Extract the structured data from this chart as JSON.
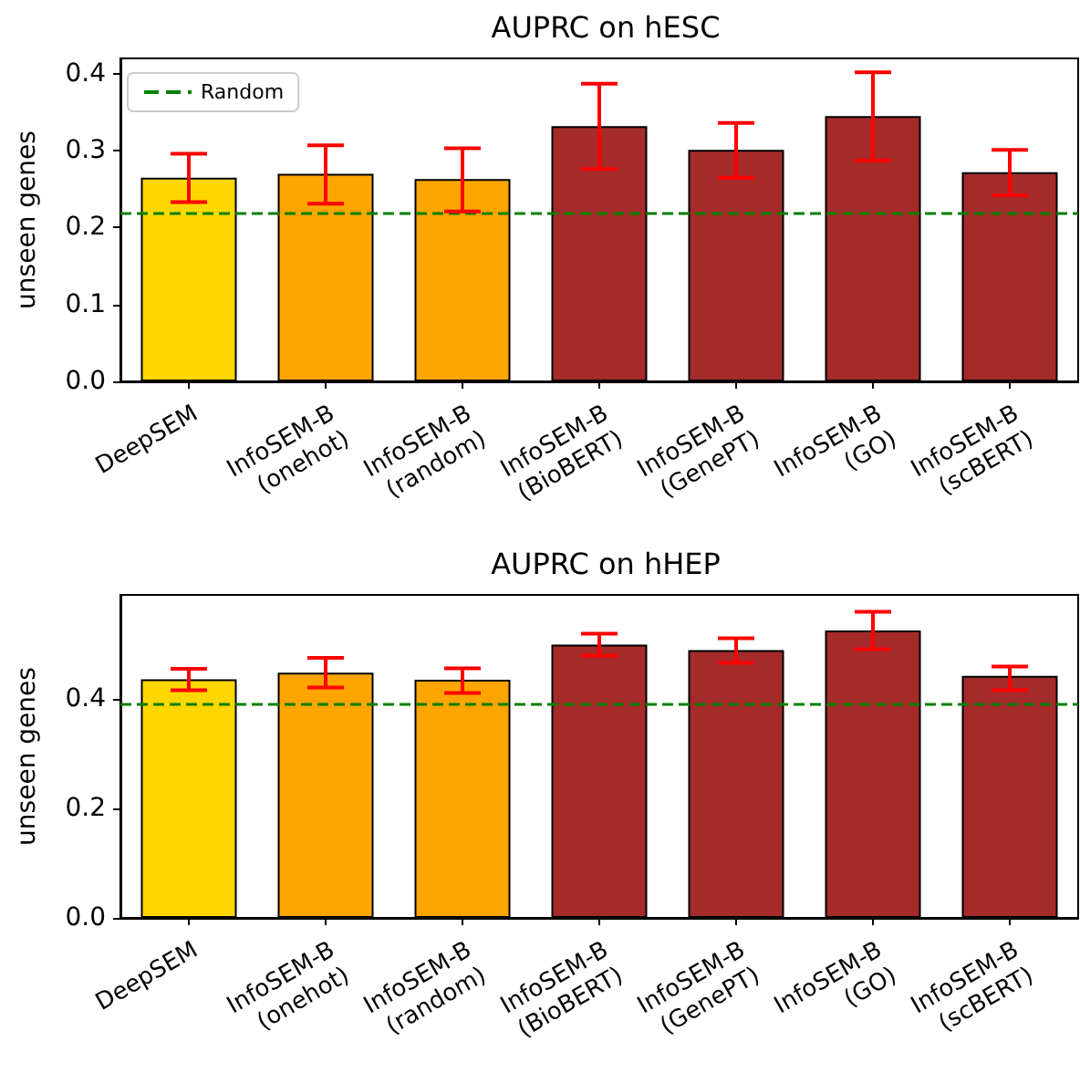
{
  "chart_data": [
    {
      "type": "bar",
      "title": "AUPRC on hESC",
      "ylabel": "unseen genes",
      "categories": [
        "DeepSEM",
        "InfoSEM-B\n(onehot)",
        "InfoSEM-B\n(random)",
        "InfoSEM-B\n(BioBERT)",
        "InfoSEM-B\n(GenePT)",
        "InfoSEM-B\n(GO)",
        "InfoSEM-B\n(scBERT)"
      ],
      "values": [
        0.265,
        0.27,
        0.263,
        0.332,
        0.301,
        0.345,
        0.272
      ],
      "colors": [
        "#ffd700",
        "#ffa500",
        "#ffa500",
        "#a52a2a",
        "#a52a2a",
        "#a52a2a",
        "#a52a2a"
      ],
      "errors": [
        [
          0.233,
          0.296
        ],
        [
          0.231,
          0.307
        ],
        [
          0.221,
          0.303
        ],
        [
          0.276,
          0.387
        ],
        [
          0.265,
          0.336
        ],
        [
          0.287,
          0.402
        ],
        [
          0.242,
          0.301
        ]
      ],
      "ylim": [
        0,
        0.42
      ],
      "yticks": [
        {
          "value": 0,
          "label": "0.0"
        },
        0.1,
        0.2,
        0.3,
        0.4
      ],
      "ref_lines": [
        {
          "axis": "y",
          "value": 0.222,
          "label": "Random",
          "color": "#008000",
          "line_style": "dashed"
        }
      ],
      "legend": "top left",
      "grid": false
    },
    {
      "type": "bar",
      "title": "AUPRC on hHEP",
      "ylabel": "unseen genes",
      "categories": [
        "DeepSEM",
        "InfoSEM-B\n(onehot)",
        "InfoSEM-B\n(random)",
        "InfoSEM-B\n(BioBERT)",
        "InfoSEM-B\n(GenePT)",
        "InfoSEM-B\n(GO)",
        "InfoSEM-B\n(scBERT)"
      ],
      "values": [
        0.436,
        0.448,
        0.435,
        0.499,
        0.489,
        0.525,
        0.442
      ],
      "colors": [
        "#ffd700",
        "#ffa500",
        "#ffa500",
        "#a52a2a",
        "#a52a2a",
        "#a52a2a",
        "#a52a2a"
      ],
      "errors": [
        [
          0.416,
          0.455
        ],
        [
          0.421,
          0.475
        ],
        [
          0.411,
          0.456
        ],
        [
          0.479,
          0.519
        ],
        [
          0.466,
          0.511
        ],
        [
          0.491,
          0.559
        ],
        [
          0.416,
          0.459
        ]
      ],
      "ylim": [
        0,
        0.59
      ],
      "yticks": [
        {
          "value": 0,
          "label": "0.0"
        },
        0.2,
        0.4
      ],
      "ref_lines": [
        {
          "axis": "y",
          "value": 0.391,
          "color": "#008000",
          "line_style": "dashed"
        }
      ],
      "grid": false
    }
  ]
}
